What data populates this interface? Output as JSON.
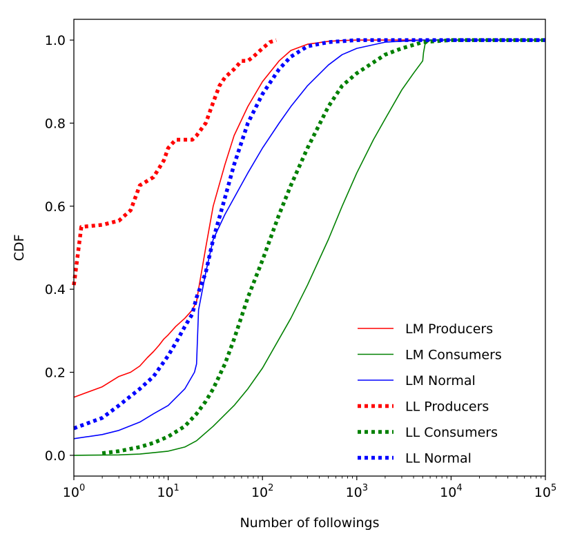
{
  "chart_data": {
    "type": "line",
    "xscale": "log",
    "xlim": [
      1,
      100000
    ],
    "ylim": [
      -0.05,
      1.05
    ],
    "xlabel": "Number of followings",
    "ylabel": "CDF",
    "grid": false,
    "legend_position": "lower-right",
    "x_ticks": [
      {
        "base": "10",
        "exp": "0",
        "value": 1
      },
      {
        "base": "10",
        "exp": "1",
        "value": 10
      },
      {
        "base": "10",
        "exp": "2",
        "value": 100
      },
      {
        "base": "10",
        "exp": "3",
        "value": 1000
      },
      {
        "base": "10",
        "exp": "4",
        "value": 10000
      },
      {
        "base": "10",
        "exp": "5",
        "value": 100000
      }
    ],
    "y_ticks": [
      {
        "label": "0.0",
        "value": 0.0
      },
      {
        "label": "0.2",
        "value": 0.2
      },
      {
        "label": "0.4",
        "value": 0.4
      },
      {
        "label": "0.6",
        "value": 0.6
      },
      {
        "label": "0.8",
        "value": 0.8
      },
      {
        "label": "1.0",
        "value": 1.0
      }
    ],
    "series": [
      {
        "name": "LM Producers",
        "color": "#ff0000",
        "style": "solid",
        "x": [
          1,
          2,
          3,
          4,
          5,
          6,
          7,
          8,
          9,
          10,
          12,
          15,
          18,
          20,
          21,
          25,
          30,
          40,
          50,
          70,
          100,
          150,
          200,
          300,
          500,
          700,
          1000,
          5000,
          100000
        ],
        "y": [
          0.14,
          0.165,
          0.19,
          0.2,
          0.215,
          0.235,
          0.25,
          0.265,
          0.28,
          0.29,
          0.31,
          0.33,
          0.35,
          0.37,
          0.4,
          0.5,
          0.6,
          0.7,
          0.77,
          0.84,
          0.9,
          0.95,
          0.975,
          0.99,
          0.997,
          0.999,
          1.0,
          1.0,
          1.0
        ]
      },
      {
        "name": "LM Consumers",
        "color": "#008000",
        "style": "solid",
        "x": [
          1,
          3,
          5,
          10,
          15,
          20,
          30,
          50,
          70,
          100,
          200,
          300,
          500,
          700,
          1000,
          1500,
          2000,
          3000,
          4000,
          5000,
          5100,
          5300,
          6000,
          100000
        ],
        "y": [
          0.0,
          0.001,
          0.003,
          0.01,
          0.02,
          0.035,
          0.07,
          0.12,
          0.16,
          0.21,
          0.33,
          0.41,
          0.52,
          0.6,
          0.68,
          0.76,
          0.81,
          0.88,
          0.92,
          0.95,
          0.97,
          0.99,
          1.0,
          1.0
        ]
      },
      {
        "name": "LM Normal",
        "color": "#0000ff",
        "style": "solid",
        "x": [
          1,
          2,
          3,
          5,
          7,
          10,
          15,
          19,
          20,
          21,
          25,
          30,
          40,
          50,
          70,
          100,
          150,
          200,
          300,
          500,
          700,
          1000,
          2000,
          5000,
          100000
        ],
        "y": [
          0.04,
          0.05,
          0.06,
          0.08,
          0.1,
          0.12,
          0.16,
          0.2,
          0.22,
          0.35,
          0.44,
          0.52,
          0.58,
          0.62,
          0.68,
          0.74,
          0.8,
          0.84,
          0.89,
          0.94,
          0.965,
          0.98,
          0.995,
          1.0,
          1.0
        ]
      },
      {
        "name": "LL Producers",
        "color": "#ff0000",
        "style": "dotted",
        "x": [
          1,
          1.2,
          2,
          3,
          4,
          5,
          7,
          9,
          10,
          12,
          15,
          18,
          20,
          25,
          30,
          35,
          40,
          50,
          60,
          70,
          80,
          100,
          120,
          140
        ],
        "y": [
          0.41,
          0.55,
          0.555,
          0.565,
          0.59,
          0.65,
          0.67,
          0.71,
          0.74,
          0.76,
          0.76,
          0.76,
          0.77,
          0.8,
          0.85,
          0.89,
          0.91,
          0.93,
          0.95,
          0.95,
          0.96,
          0.98,
          0.995,
          1.0
        ]
      },
      {
        "name": "LL Consumers",
        "color": "#008000",
        "style": "dotted",
        "x": [
          2,
          3,
          5,
          7,
          10,
          15,
          20,
          25,
          30,
          40,
          50,
          70,
          100,
          150,
          200,
          300,
          500,
          700,
          1000,
          2000,
          3000,
          5000,
          10000,
          100000
        ],
        "y": [
          0.005,
          0.01,
          0.02,
          0.03,
          0.045,
          0.07,
          0.1,
          0.13,
          0.16,
          0.22,
          0.28,
          0.38,
          0.47,
          0.58,
          0.65,
          0.74,
          0.84,
          0.89,
          0.92,
          0.965,
          0.98,
          0.995,
          1.0,
          1.0
        ]
      },
      {
        "name": "LL Normal",
        "color": "#0000ff",
        "style": "dotted",
        "x": [
          1,
          2,
          3,
          5,
          7,
          10,
          12,
          15,
          18,
          20,
          25,
          30,
          40,
          50,
          70,
          100,
          150,
          200,
          300,
          500,
          1000,
          2000,
          5000,
          100000
        ],
        "y": [
          0.065,
          0.09,
          0.12,
          0.16,
          0.19,
          0.24,
          0.27,
          0.31,
          0.34,
          0.38,
          0.44,
          0.52,
          0.62,
          0.7,
          0.8,
          0.87,
          0.93,
          0.96,
          0.985,
          0.995,
          1.0,
          1.0,
          1.0,
          1.0
        ]
      }
    ]
  }
}
